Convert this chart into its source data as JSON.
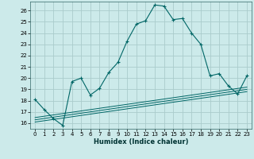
{
  "xlabel": "Humidex (Indice chaleur)",
  "background_color": "#cceaea",
  "grid_color": "#aacccc",
  "line_color": "#006666",
  "xlim": [
    -0.5,
    23.5
  ],
  "ylim": [
    15.5,
    26.8
  ],
  "x_ticks": [
    0,
    1,
    2,
    3,
    4,
    5,
    6,
    7,
    8,
    9,
    10,
    11,
    12,
    13,
    14,
    15,
    16,
    17,
    18,
    19,
    20,
    21,
    22,
    23
  ],
  "y_ticks": [
    16,
    17,
    18,
    19,
    20,
    21,
    22,
    23,
    24,
    25,
    26
  ],
  "main_line_x": [
    0,
    1,
    2,
    3,
    4,
    5,
    6,
    7,
    8,
    9,
    10,
    11,
    12,
    13,
    14,
    15,
    16,
    17,
    18,
    19,
    20,
    21,
    22,
    23
  ],
  "main_line_y": [
    18.1,
    17.2,
    16.4,
    15.8,
    19.7,
    20.0,
    18.5,
    19.1,
    20.5,
    21.4,
    23.3,
    24.8,
    25.1,
    26.5,
    26.4,
    25.2,
    25.3,
    24.0,
    23.0,
    20.2,
    20.4,
    19.3,
    18.6,
    20.2
  ],
  "linear_lines": [
    {
      "x": [
        0,
        23
      ],
      "y": [
        16.5,
        19.2
      ]
    },
    {
      "x": [
        0,
        23
      ],
      "y": [
        16.3,
        19.0
      ]
    },
    {
      "x": [
        0,
        23
      ],
      "y": [
        16.1,
        18.8
      ]
    }
  ]
}
